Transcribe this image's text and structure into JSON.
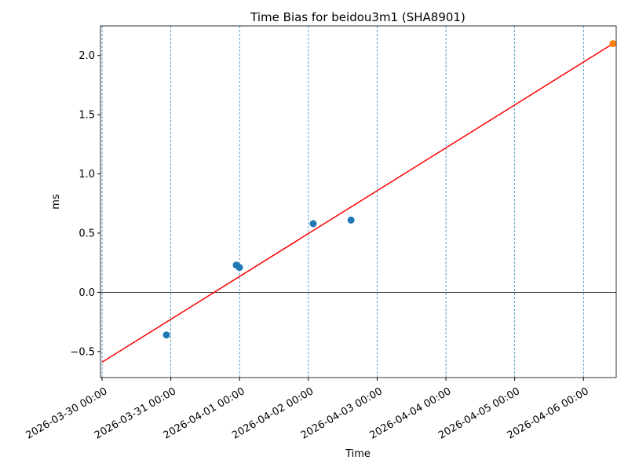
{
  "chart_data": {
    "type": "scatter",
    "title": "Time Bias for beidou3m1 (SHA8901)",
    "x_label": "Time",
    "y_label": "ms",
    "xlim": [
      "2026-03-29 23:27",
      "2026-04-06 11:26"
    ],
    "xticks": [
      "2026-03-30 00:00",
      "2026-03-31 00:00",
      "2026-04-01 00:00",
      "2026-04-02 00:00",
      "2026-04-03 00:00",
      "2026-04-04 00:00",
      "2026-04-05 00:00",
      "2026-04-06 00:00"
    ],
    "ylim": [
      -0.72,
      2.25
    ],
    "yticks": [
      -0.5,
      0.0,
      0.5,
      1.0,
      1.5,
      2.0
    ],
    "ytick_labels": [
      "−0.5",
      "0.0",
      "0.5",
      "1.0",
      "1.5",
      "2.0"
    ],
    "x_grid": true,
    "hline": 0,
    "series": [
      {
        "type": "scatter",
        "color": "#1f77b4",
        "x": [
          "2026-03-30 22:28",
          "2026-03-31 22:51",
          "2026-03-31 23:57",
          "2026-04-02 01:41",
          "2026-04-02 14:53"
        ],
        "values": [
          -0.36,
          0.23,
          0.21,
          0.58,
          0.61
        ]
      },
      {
        "type": "line",
        "color": "#ff0000",
        "x": [
          "2026-03-30 00:00",
          "2026-04-06 10:19"
        ],
        "values": [
          -0.59,
          2.1
        ]
      },
      {
        "type": "scatter",
        "color": "#ff7f0e",
        "x": [
          "2026-04-06 10:19"
        ],
        "values": [
          2.1
        ]
      }
    ]
  }
}
